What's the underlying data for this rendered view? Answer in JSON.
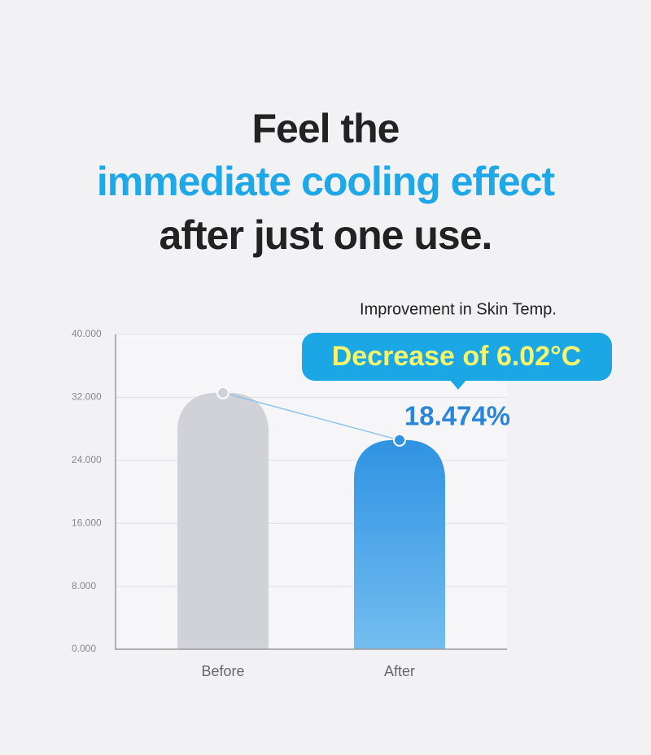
{
  "headline": [
    "Feel the",
    "immediate cooling effect",
    "after just one use."
  ],
  "chart_data": {
    "type": "bar",
    "title": "Improvement in Skin Temp.",
    "categories": [
      "Before",
      "After"
    ],
    "values": [
      32.59,
      26.57
    ],
    "colors": [
      "#d1d2d8",
      "#2f93e2"
    ],
    "ylim": [
      0,
      40
    ],
    "yticks": [
      {
        "value": 0,
        "label": "0.000"
      },
      {
        "value": 8,
        "label": "8.000"
      },
      {
        "value": 16,
        "label": "16.000"
      },
      {
        "value": 24,
        "label": "24.000"
      },
      {
        "value": 32,
        "label": "32.000"
      },
      {
        "value": 40,
        "label": "40.000"
      }
    ],
    "grid": true,
    "annotations": [
      "Decrease of 6.02°C",
      "18.474%"
    ]
  }
}
